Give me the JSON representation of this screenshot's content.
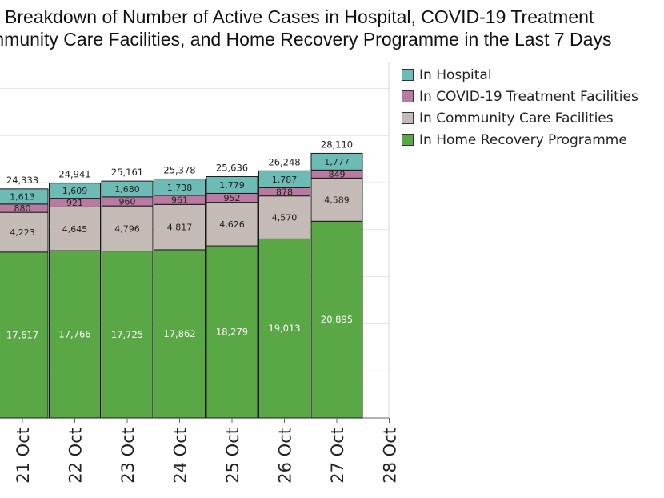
{
  "chart_data": {
    "type": "bar",
    "stacked": true,
    "title_lines": [
      "Breakdown of Number of Active Cases in Hospital, COVID-19 Treatment",
      "mmunity Care Facilities, and Home Recovery Programme in the Last 7 Days"
    ],
    "categories": [
      "21 Oct",
      "22 Oct",
      "23 Oct",
      "24 Oct",
      "25 Oct",
      "26 Oct",
      "27 Oct",
      "28 Oct"
    ],
    "series": [
      {
        "name": "In Home Recovery Programme",
        "color": "#5aa845",
        "values": [
          17617,
          17766,
          17725,
          17862,
          18279,
          19013,
          20895,
          null
        ],
        "labels": [
          "17,617",
          "17,766",
          "17,725",
          "17,862",
          "18,279",
          "19,013",
          "20,895",
          ""
        ]
      },
      {
        "name": "In Community Care Facilities",
        "color": "#c4bbb7",
        "values": [
          4223,
          4645,
          4796,
          4817,
          4626,
          4570,
          4589,
          null
        ],
        "labels": [
          "4,223",
          "4,645",
          "4,796",
          "4,817",
          "4,626",
          "4,570",
          "4,589",
          ""
        ]
      },
      {
        "name": "In COVID-19 Treatment Facilities",
        "color": "#b97aa1",
        "values": [
          880,
          921,
          960,
          961,
          952,
          878,
          849,
          null
        ],
        "labels": [
          "880",
          "921",
          "960",
          "961",
          "952",
          "878",
          "849",
          ""
        ]
      },
      {
        "name": "In Hospital",
        "color": "#6dbbb5",
        "values": [
          1613,
          1609,
          1680,
          1738,
          1779,
          1787,
          1777,
          null
        ],
        "labels": [
          "1,613",
          "1,609",
          "1,680",
          "1,738",
          "1,779",
          "1,787",
          "1,777",
          ""
        ]
      }
    ],
    "totals": [
      24333,
      24941,
      25161,
      25378,
      25636,
      26248,
      28110,
      null
    ],
    "total_labels": [
      "24,333",
      "24,941",
      "25,161",
      "25,378",
      "25,636",
      "26,248",
      "28,110",
      ""
    ],
    "ylim": [
      0,
      35000
    ],
    "grid": true,
    "legend_position": "right",
    "legend_order": [
      "In Hospital",
      "In COVID-19 Treatment Facilities",
      "In Community Care Facilities",
      "In Home Recovery Programme"
    ]
  }
}
